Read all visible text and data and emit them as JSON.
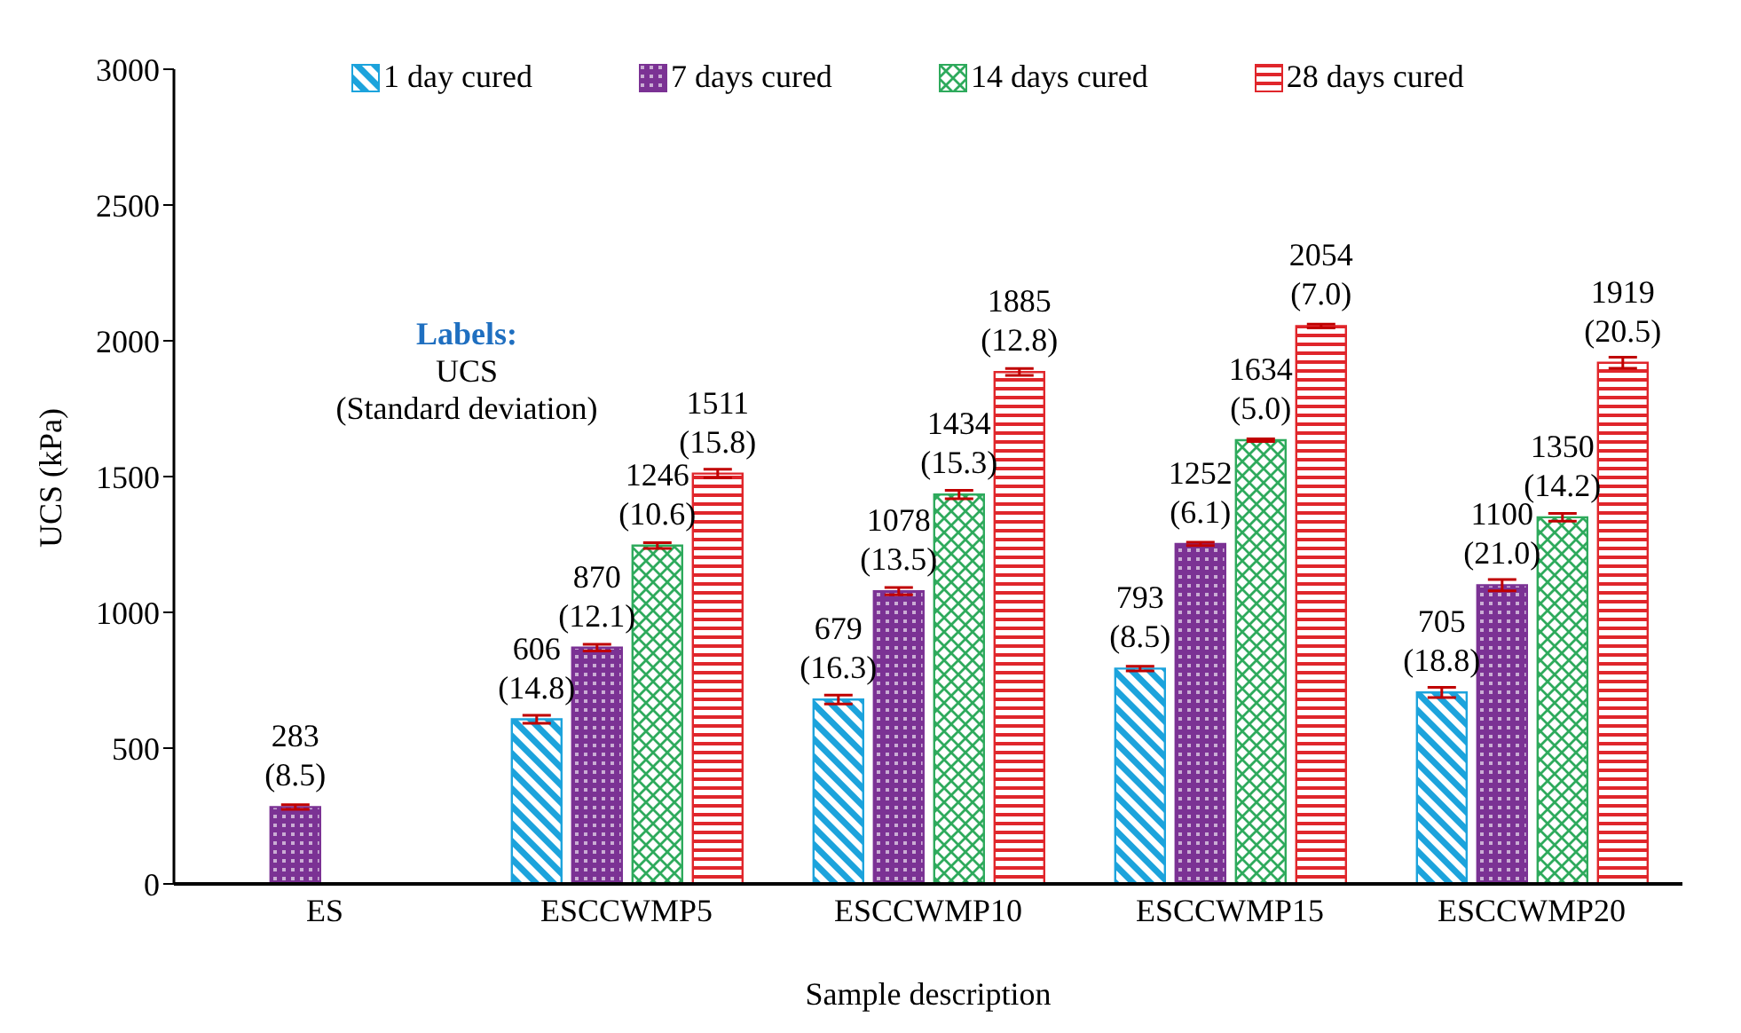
{
  "chart_data": {
    "type": "bar",
    "xlabel": "Sample description",
    "ylabel": "UCS (kPa)",
    "categories": [
      "ES",
      "ESCCWMP5",
      "ESCCWMP10",
      "ESCCWMP15",
      "ESCCWMP20"
    ],
    "ylim": [
      0,
      3000
    ],
    "yticks": [
      0,
      500,
      1000,
      1500,
      2000,
      2500,
      3000
    ],
    "grid": false,
    "legend": "top",
    "annotations": [
      "Labels:",
      "UCS",
      "(Standard deviation)"
    ],
    "series": [
      {
        "name": "1 day cured",
        "color": "#1ca3dc",
        "values": [
          null,
          606,
          679,
          793,
          705
        ],
        "errors": [
          null,
          14.8,
          16.3,
          8.5,
          18.8
        ],
        "value_labels": [
          null,
          "606 (14.8)",
          "679 (16.3)",
          "793 (8.5)",
          "705 (18.8)"
        ]
      },
      {
        "name": "7 days cured",
        "color": "#7b3294",
        "values": [
          283,
          870,
          1078,
          1252,
          1100
        ],
        "errors": [
          8.5,
          12.1,
          13.5,
          6.1,
          21.0
        ],
        "value_labels": [
          "283 (8.5)",
          "870 (12.1)",
          "1078 (13.5)",
          "1252 (6.1)",
          "1100 (21.0)"
        ]
      },
      {
        "name": "14 days cured",
        "color": "#2eaa5c",
        "values": [
          null,
          1246,
          1434,
          1634,
          1350
        ],
        "errors": [
          null,
          10.6,
          15.3,
          5.0,
          14.2
        ],
        "value_labels": [
          null,
          "1246 (10.6)",
          "1434 (15.3)",
          "1634 (5.0)",
          "1350 (14.2)"
        ]
      },
      {
        "name": "28 days cured",
        "color": "#e0262b",
        "values": [
          null,
          1511,
          1885,
          2054,
          1919
        ],
        "errors": [
          null,
          15.8,
          12.8,
          7.0,
          20.5
        ],
        "value_labels": [
          null,
          "1511 (15.8)",
          "1885 (12.8)",
          "2054 (7.0)",
          "1919 (20.5)"
        ]
      }
    ]
  }
}
